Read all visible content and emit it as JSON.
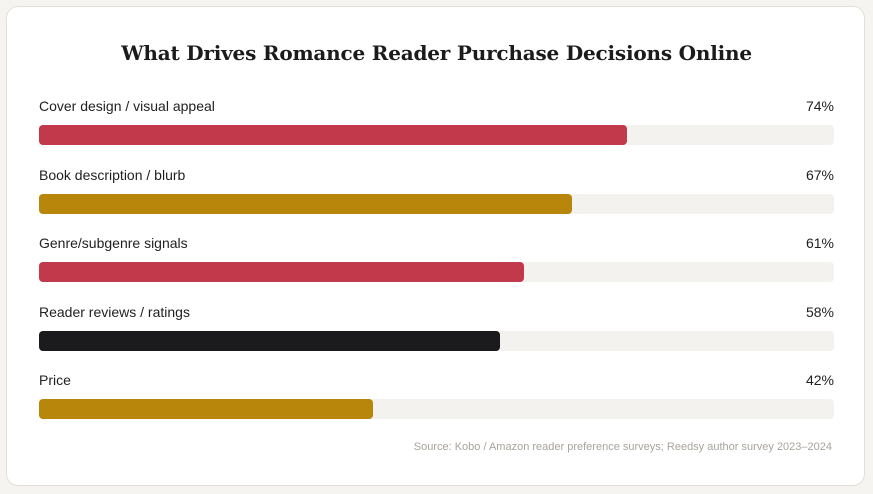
{
  "chart_data": {
    "type": "bar",
    "orientation": "horizontal",
    "title": "What Drives Romance Reader Purchase Decisions Online",
    "categories": [
      "Cover design / visual appeal",
      "Book description / blurb",
      "Genre/subgenre signals",
      "Reader reviews / ratings",
      "Price"
    ],
    "values": [
      74,
      67,
      61,
      58,
      42
    ],
    "value_labels": [
      "74%",
      "67%",
      "61%",
      "58%",
      "42%"
    ],
    "bar_colors": [
      "#c2394b",
      "#b8860b",
      "#c2394b",
      "#1b1b1d",
      "#b8860b"
    ],
    "track_color": "#f4f2ee",
    "xlim": [
      0,
      100
    ],
    "unit": "%",
    "grid": false,
    "legend": "none",
    "source": "Source: Kobo / Amazon reader preference surveys; Reedsy author survey 2023–2024"
  }
}
